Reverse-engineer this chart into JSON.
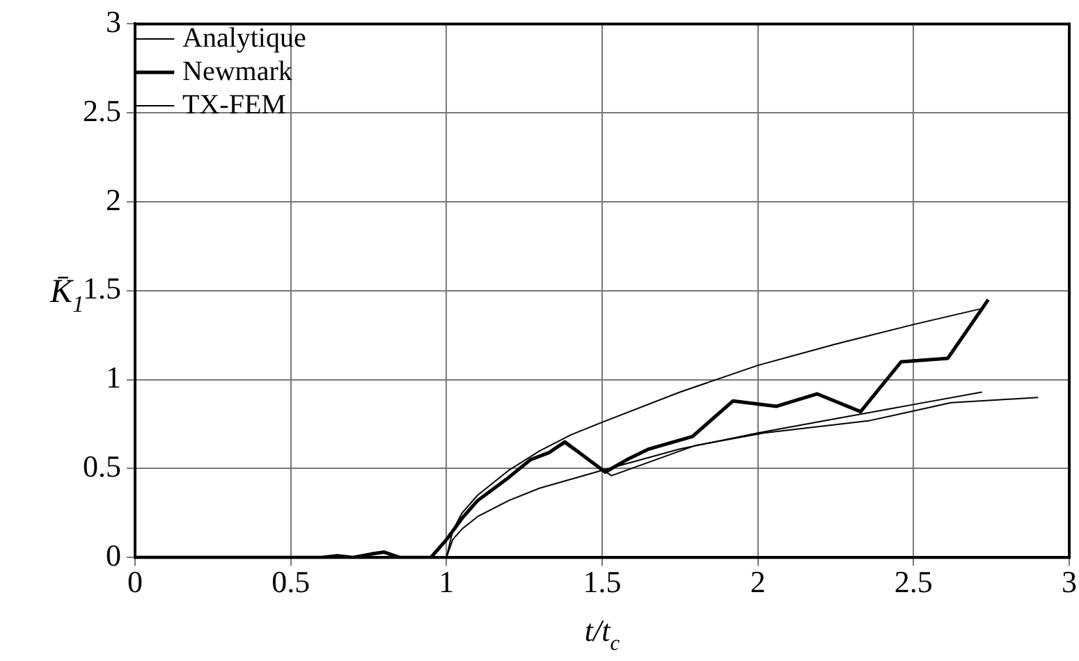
{
  "chart_data": {
    "type": "line",
    "xlabel": "t/t$_{c}$",
    "ylabel": "K̄$_{1}$",
    "xlim": [
      0,
      3
    ],
    "ylim": [
      0,
      3
    ],
    "xticks": [
      0,
      0.5,
      1,
      1.5,
      2,
      2.5,
      3
    ],
    "yticks": [
      0,
      0.5,
      1,
      1.5,
      2,
      2.5,
      3
    ],
    "grid": true,
    "legend": "top left",
    "marker": "none",
    "line_style": "solid",
    "series": [
      {
        "name": "Analytique",
        "color": "#000000",
        "x": [
          1,
          1.02,
          1.05,
          1.1,
          1.2,
          1.3,
          1.4,
          1.5,
          1.75,
          2,
          2.25,
          2.5,
          2.72
        ],
        "values": [
          0,
          0.15,
          0.25,
          0.35,
          0.49,
          0.6,
          0.69,
          0.76,
          0.93,
          1.08,
          1.2,
          1.31,
          1.4
        ]
      },
      {
        "name": "Newmark",
        "color": "#000000",
        "x": [
          0,
          0.6,
          0.65,
          0.7,
          0.76,
          0.8,
          0.85,
          0.95,
          1,
          1.05,
          1.1,
          1.2,
          1.27,
          1.33,
          1.38,
          1.51,
          1.58,
          1.65,
          1.79,
          1.92,
          2.06,
          2.19,
          2.33,
          2.46,
          2.61,
          2.74
        ],
        "values": [
          0,
          0,
          0.01,
          0,
          0.02,
          0.03,
          0,
          0,
          0.1,
          0.22,
          0.32,
          0.45,
          0.55,
          0.59,
          0.65,
          0.48,
          0.55,
          0.61,
          0.68,
          0.88,
          0.85,
          0.92,
          0.82,
          1.1,
          1.12,
          1.45
        ]
      },
      {
        "name": "TX-FEM",
        "color": "#000000",
        "x": [
          0,
          0.6,
          0.65,
          0.7,
          0.76,
          0.8,
          0.85,
          0.95,
          1,
          1.05,
          1.1,
          1.2,
          1.27,
          1.33,
          1.38,
          1.53,
          1.8,
          2.02,
          2.36,
          2.62,
          2.9
        ],
        "values": [
          0,
          0,
          0.01,
          0,
          0.02,
          0.03,
          0,
          0,
          0.1,
          0.22,
          0.32,
          0.45,
          0.55,
          0.59,
          0.64,
          0.46,
          0.63,
          0.7,
          0.77,
          0.87,
          0.9
        ]
      },
      {
        "color": "#000000",
        "x": [
          1,
          1.02,
          1.05,
          1.1,
          1.2,
          1.3,
          1.4,
          1.5,
          1.75,
          2,
          2.25,
          2.5,
          2.72
        ],
        "values": [
          0,
          0.1,
          0.16,
          0.23,
          0.32,
          0.39,
          0.44,
          0.49,
          0.61,
          0.7,
          0.78,
          0.86,
          0.93
        ]
      }
    ]
  }
}
